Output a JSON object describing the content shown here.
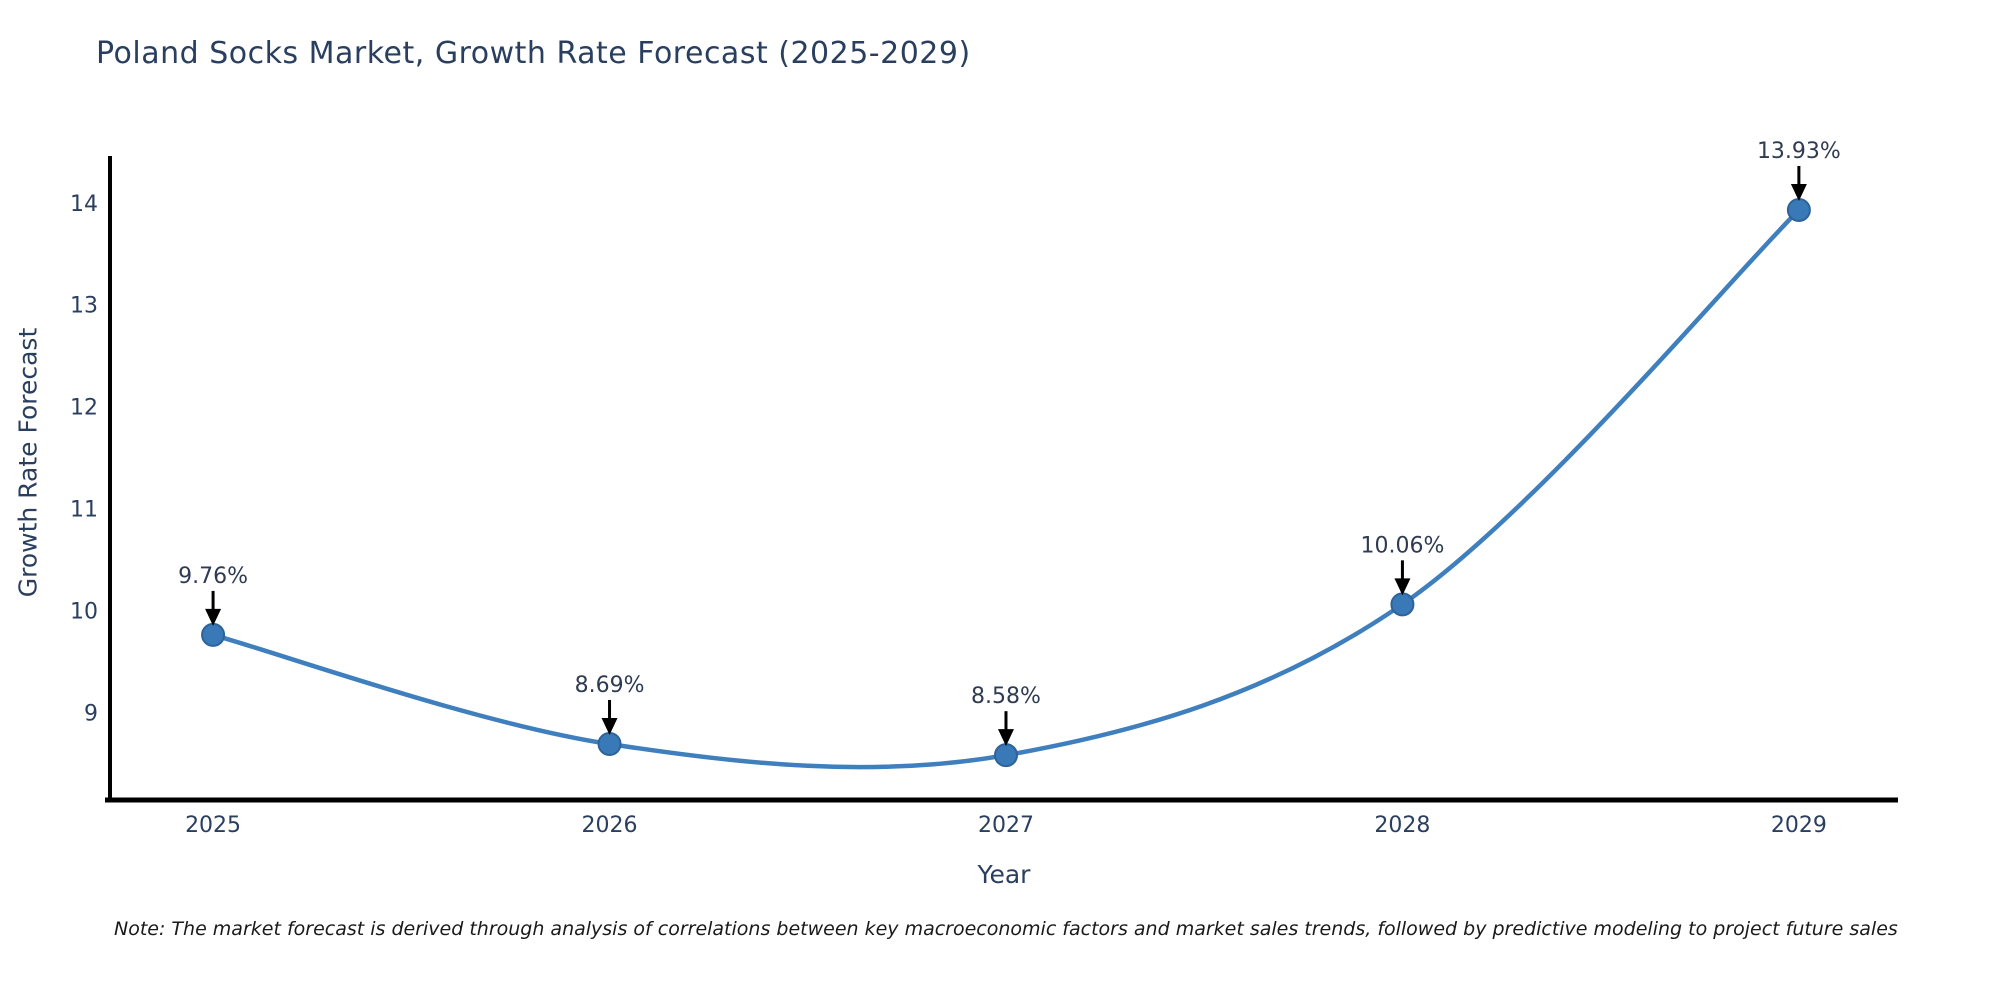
{
  "header": {
    "title": "Poland Socks Market, Growth Rate Forecast (2025-2029)"
  },
  "footnote": {
    "text": "Note: The market forecast is derived through analysis of correlations between key macroeconomic factors and market sales trends, followed by predictive modeling to project future sales"
  },
  "chart_data": {
    "type": "line",
    "line_shape": "spline",
    "title": "Poland Socks Market, Growth Rate Forecast (2025-2029)",
    "xlabel": "Year",
    "ylabel": "Growth Rate Forecast",
    "categories": [
      "2025",
      "2026",
      "2027",
      "2028",
      "2029"
    ],
    "x": [
      2025,
      2026,
      2027,
      2028,
      2029
    ],
    "series": [
      {
        "name": "Growth Rate Forecast",
        "values": [
          9.76,
          8.69,
          8.58,
          10.06,
          13.93
        ]
      }
    ],
    "point_labels": [
      "9.76%",
      "8.69%",
      "8.58%",
      "10.06%",
      "13.93%"
    ],
    "yticks": [
      9,
      10,
      11,
      12,
      13,
      14
    ],
    "ylim": [
      8.14,
      14.44
    ],
    "xlim": [
      2024.74,
      2029.25
    ],
    "grid": false,
    "legend_position": "none",
    "annotations_have_arrows": true,
    "colors": {
      "line": "#3f7fbe",
      "marker_fill": "#3a79b8",
      "marker_edge": "#2e6399",
      "arrow": "#000000",
      "annotation_text": "#2f3b52",
      "tick_text": "#2a3f5f",
      "axis_line": "#000000",
      "background": "#ffffff"
    }
  }
}
